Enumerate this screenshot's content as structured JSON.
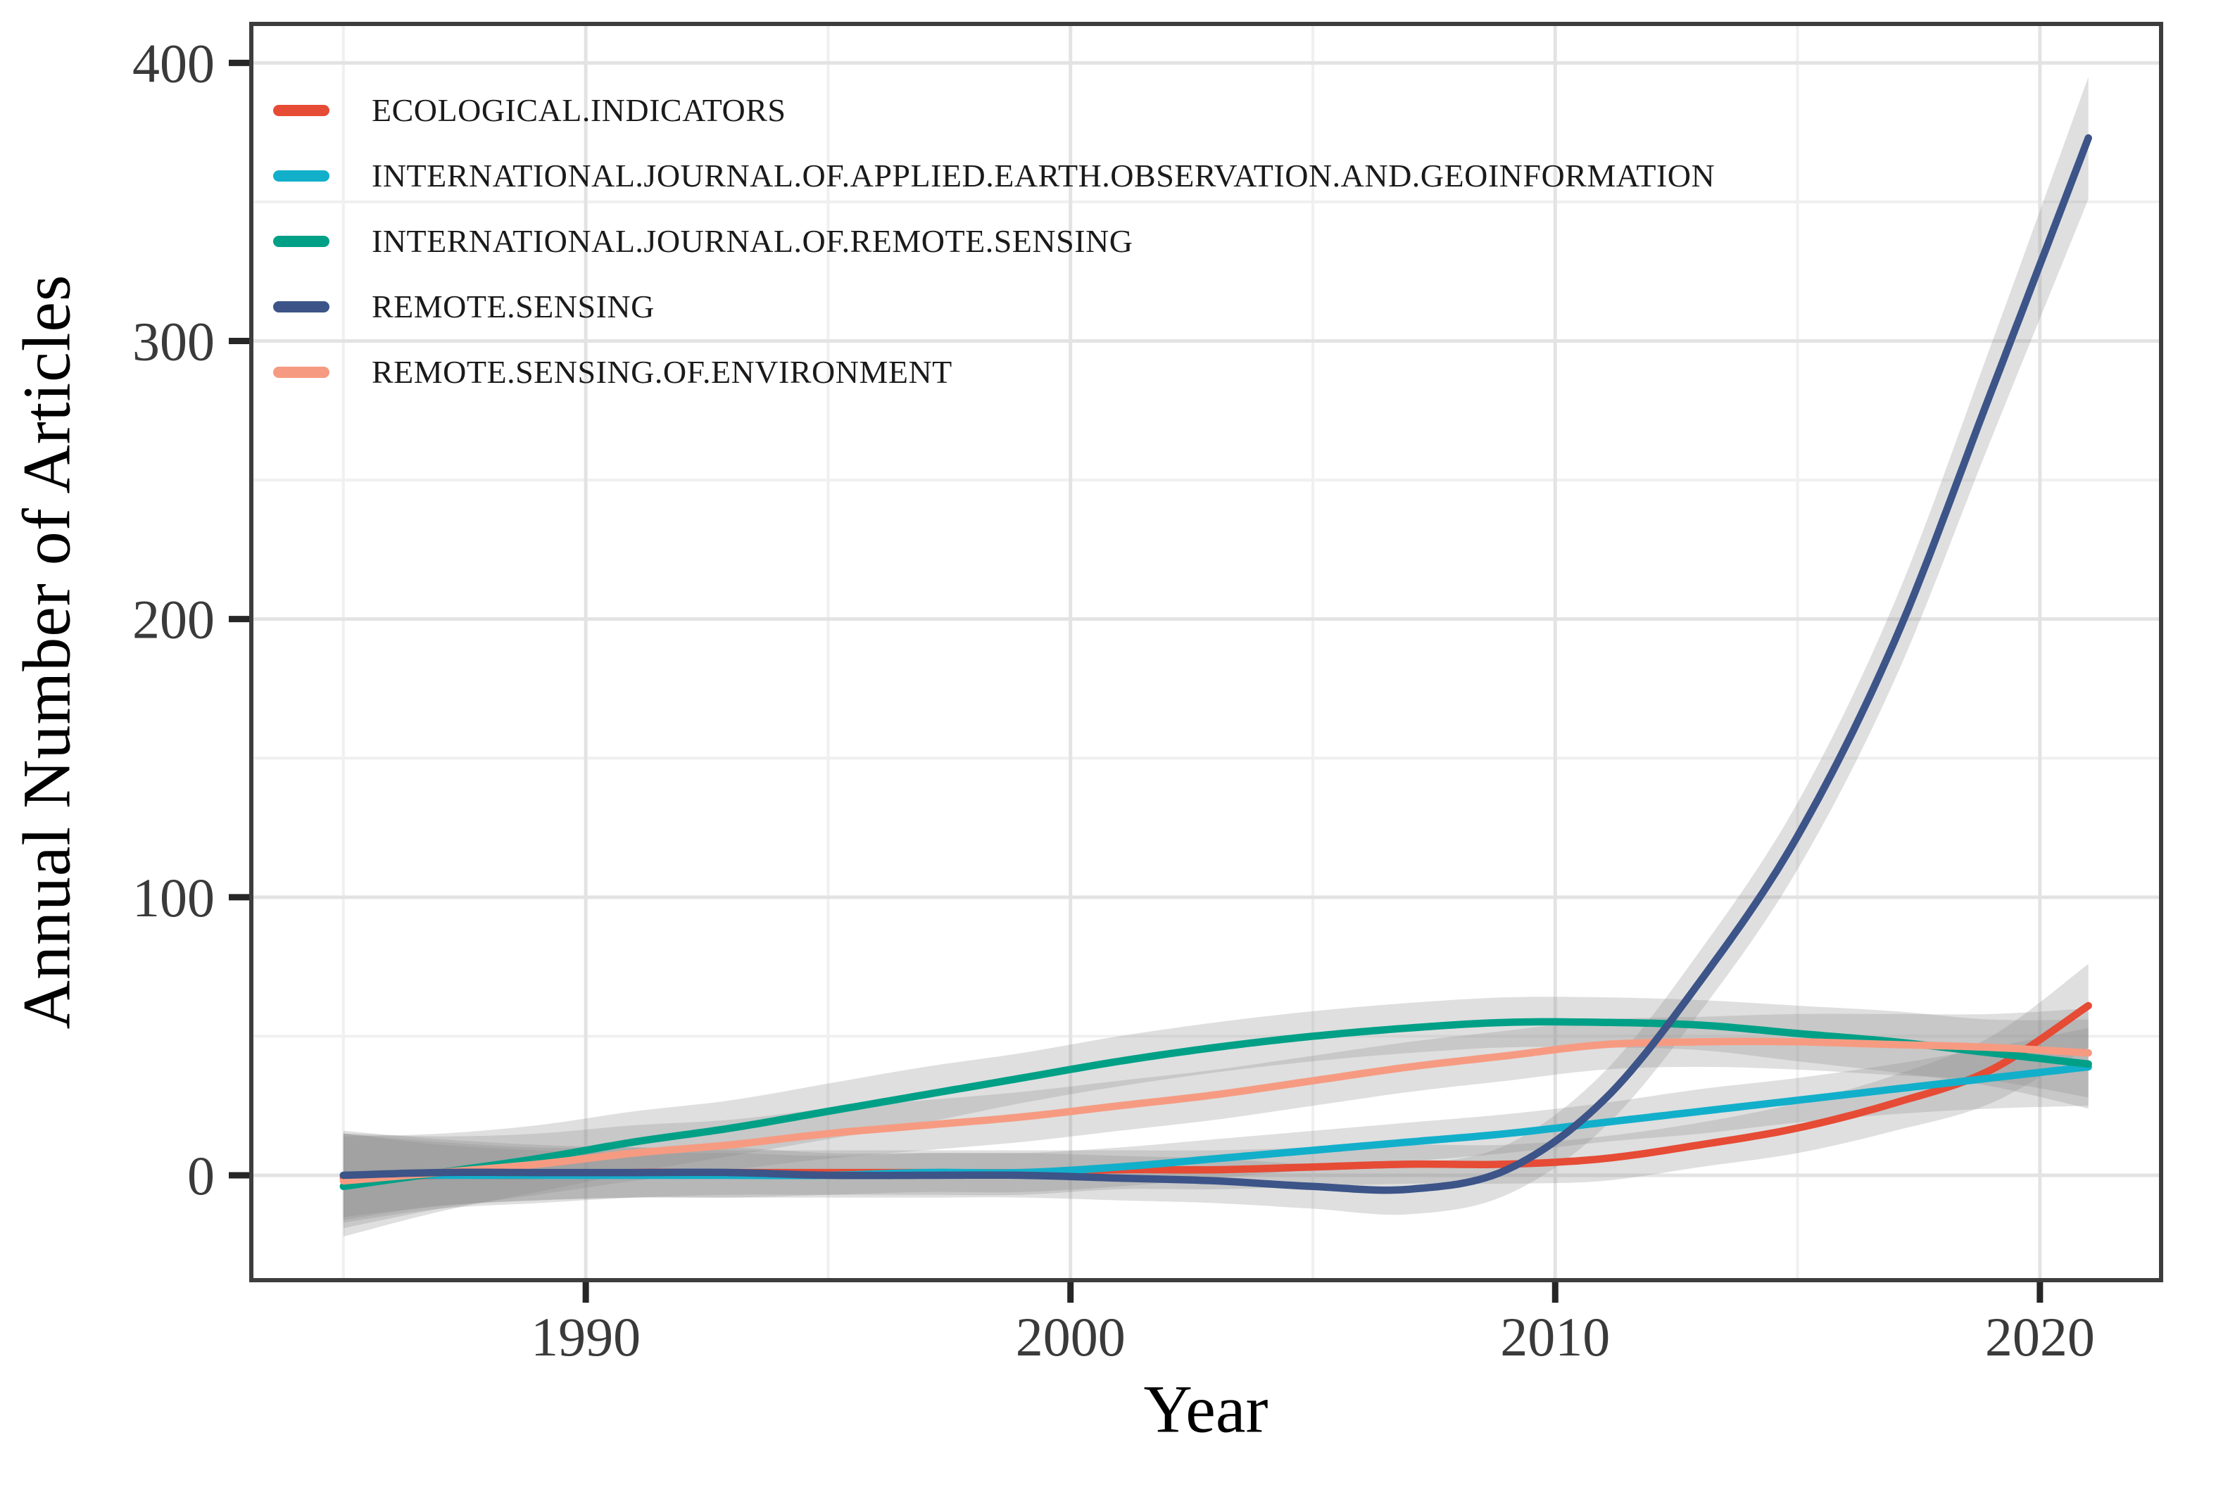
{
  "axes": {
    "x": {
      "title": "Year",
      "ticks": [
        1990,
        2000,
        2010,
        2020
      ],
      "minor_ticks": [
        1985,
        1995,
        2005,
        2015
      ],
      "domain": [
        1983.1,
        2022.5
      ]
    },
    "y": {
      "title": "Annual Number of Articles",
      "ticks": [
        0,
        100,
        200,
        300,
        400
      ],
      "minor_ticks": [
        50,
        150,
        250,
        350
      ],
      "domain": [
        -37.7,
        414
      ]
    }
  },
  "style": {
    "background": "#ffffff",
    "panel_border": "#3d3d3d",
    "grid_major": "#e3e3e3",
    "grid_minor": "#f0f0f0",
    "tick_color": "#262626",
    "tick_label_color": "#3a3a3a",
    "band_fill": "#8c8c8c",
    "band_opacity": 0.28
  },
  "legend": {
    "position": "top-left-inside",
    "items": [
      {
        "label": "ECOLOGICAL.INDICATORS",
        "color": "#E64B35"
      },
      {
        "label": "INTERNATIONAL.JOURNAL.OF.APPLIED.EARTH.OBSERVATION.AND.GEOINFORMATION",
        "color": "#12AFCB"
      },
      {
        "label": "INTERNATIONAL.JOURNAL.OF.REMOTE.SENSING",
        "color": "#00A087"
      },
      {
        "label": "REMOTE.SENSING",
        "color": "#3C5488"
      },
      {
        "label": "REMOTE.SENSING.OF.ENVIRONMENT",
        "color": "#F69B82"
      }
    ]
  },
  "chart_data": {
    "type": "line",
    "title": "",
    "xlabel": "Year",
    "ylabel": "Annual Number of Articles",
    "xlim": [
      1983,
      2022.5
    ],
    "ylim": [
      -38,
      414
    ],
    "grid": true,
    "smoothed": true,
    "confidence_bands": true,
    "x": [
      1985,
      1987,
      1989,
      1991,
      1993,
      1995,
      1997,
      1999,
      2001,
      2003,
      2005,
      2007,
      2009,
      2011,
      2013,
      2015,
      2017,
      2019,
      2021
    ],
    "series": [
      {
        "name": "ECOLOGICAL.INDICATORS",
        "color": "#E64B35",
        "values": [
          -1,
          0,
          0,
          1,
          1,
          1,
          1,
          1,
          2,
          2,
          3,
          4,
          4,
          6,
          11,
          17,
          26,
          38,
          61
        ],
        "band_halfwidth": [
          16,
          12,
          10,
          9,
          8,
          8,
          8,
          8,
          7,
          7,
          7,
          7,
          7,
          8,
          8,
          9,
          10,
          12,
          15
        ]
      },
      {
        "name": "INTERNATIONAL.JOURNAL.OF.APPLIED.EARTH.OBSERVATION.AND.GEOINFORMATION",
        "color": "#12AFCB",
        "values": [
          0,
          0,
          0,
          0,
          0,
          0,
          1,
          1,
          3,
          6,
          9,
          12,
          15,
          19,
          23,
          27,
          31,
          35,
          39
        ],
        "band_halfwidth": [
          15,
          11,
          9,
          8,
          8,
          7,
          7,
          7,
          7,
          7,
          7,
          7,
          7,
          7,
          8,
          8,
          9,
          11,
          14
        ]
      },
      {
        "name": "INTERNATIONAL.JOURNAL.OF.REMOTE.SENSING",
        "color": "#00A087",
        "values": [
          -4,
          1,
          6,
          12,
          17,
          23,
          29,
          35,
          41,
          46,
          50,
          53,
          55,
          55,
          54,
          51,
          48,
          44,
          40
        ],
        "band_halfwidth": [
          18,
          14,
          12,
          11,
          10,
          10,
          10,
          9,
          9,
          9,
          9,
          9,
          9,
          9,
          9,
          10,
          11,
          12,
          16
        ]
      },
      {
        "name": "REMOTE.SENSING",
        "color": "#3C5488",
        "values": [
          0,
          1,
          1,
          1,
          1,
          0,
          0,
          0,
          -1,
          -2,
          -4,
          -5,
          2,
          27,
          70,
          122,
          192,
          282,
          373
        ],
        "band_halfwidth": [
          16,
          12,
          10,
          9,
          9,
          8,
          8,
          8,
          8,
          8,
          8,
          9,
          9,
          10,
          11,
          12,
          14,
          17,
          22
        ]
      },
      {
        "name": "REMOTE.SENSING.OF.ENVIRONMENT",
        "color": "#F69B82",
        "values": [
          -2,
          1,
          4,
          8,
          11,
          15,
          18,
          21,
          25,
          29,
          34,
          39,
          43,
          47,
          48,
          48,
          47,
          46,
          44
        ],
        "band_halfwidth": [
          17,
          13,
          11,
          10,
          9,
          9,
          9,
          9,
          9,
          9,
          9,
          9,
          9,
          9,
          9,
          10,
          11,
          12,
          16
        ]
      }
    ],
    "draw_order": [
      0,
      1,
      2,
      4,
      3
    ],
    "legend_position": "top-left-inside"
  }
}
